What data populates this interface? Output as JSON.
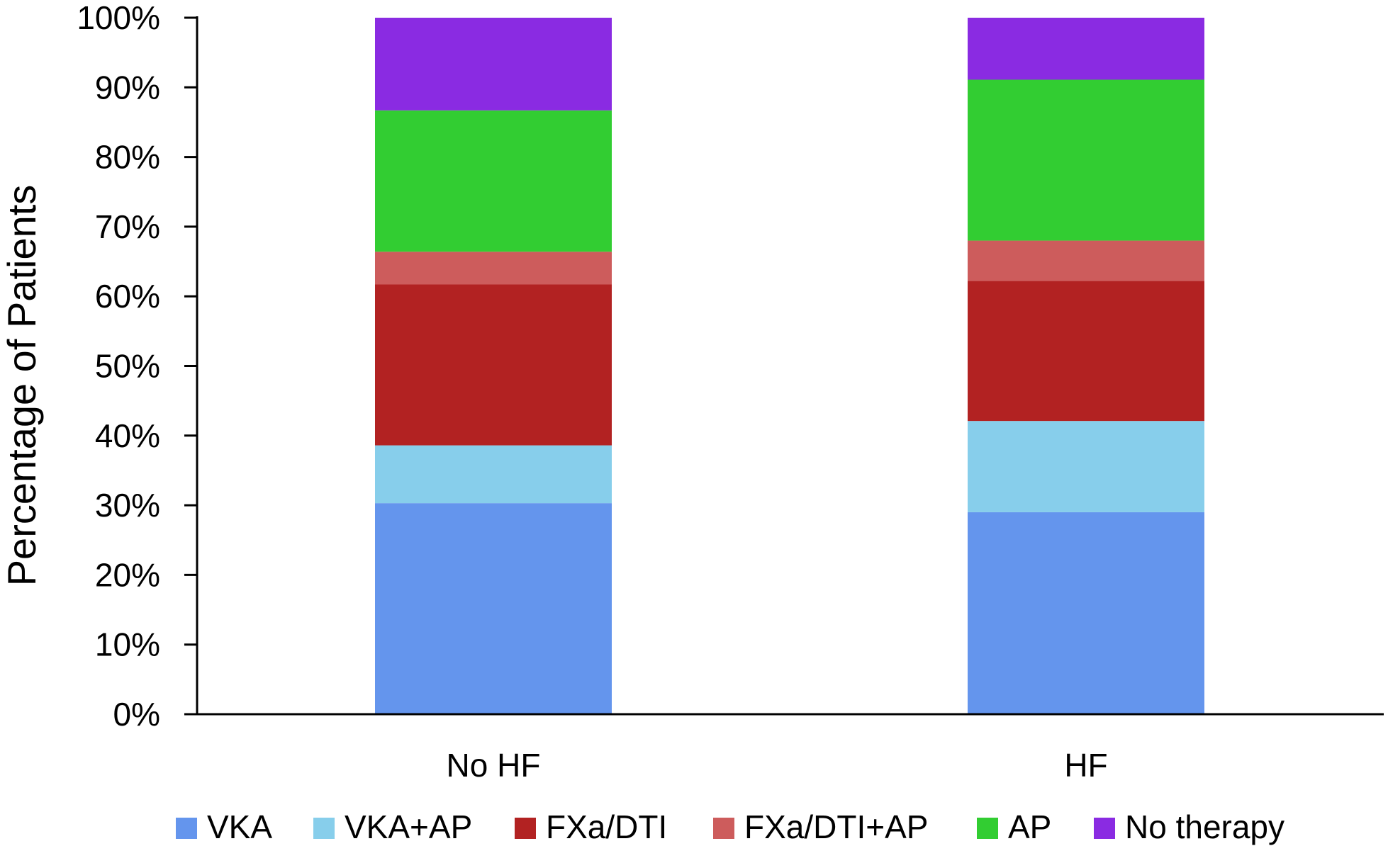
{
  "chart_data": {
    "type": "bar",
    "stacked": true,
    "categories": [
      "No HF",
      "HF"
    ],
    "series": [
      {
        "name": "VKA",
        "color": "#6495ED",
        "values": [
          30.3,
          29.0
        ]
      },
      {
        "name": "VKA+AP",
        "color": "#87CEEB",
        "values": [
          8.3,
          13.1
        ]
      },
      {
        "name": "FXa/DTI",
        "color": "#B22222",
        "values": [
          23.1,
          20.1
        ]
      },
      {
        "name": "FXa/DTI+AP",
        "color": "#CD5C5C",
        "values": [
          4.7,
          5.8
        ]
      },
      {
        "name": "AP",
        "color": "#32CD32",
        "values": [
          20.3,
          23.1
        ]
      },
      {
        "name": "No therapy",
        "color": "#8A2BE2",
        "values": [
          13.3,
          8.9
        ]
      }
    ],
    "xlabel": "",
    "ylabel": "Percentage of Patients",
    "ylim": [
      0,
      100
    ],
    "yticks": [
      "0%",
      "10%",
      "20%",
      "30%",
      "40%",
      "50%",
      "60%",
      "70%",
      "80%",
      "90%",
      "100%"
    ],
    "grid": false,
    "legend_position": "bottom"
  }
}
